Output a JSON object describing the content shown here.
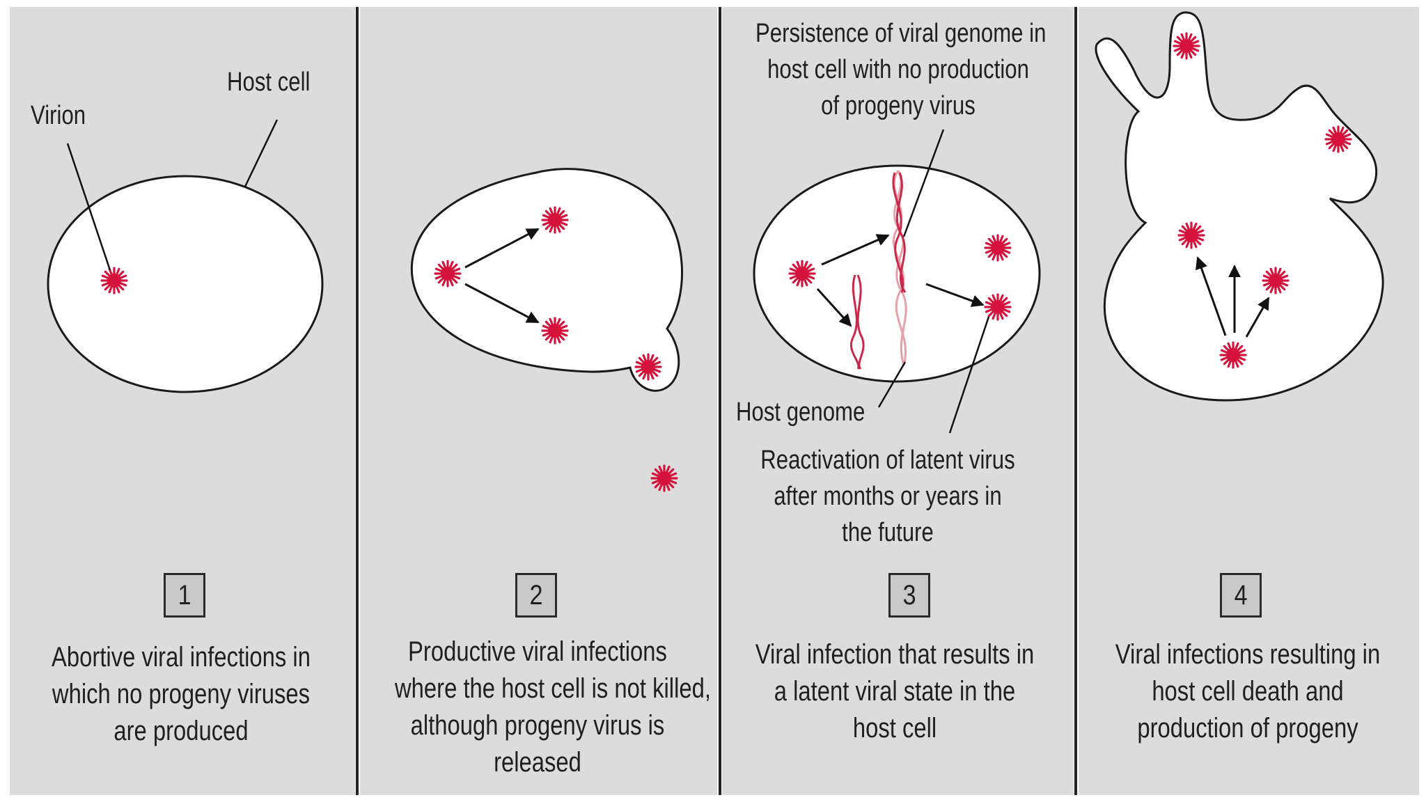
{
  "colors": {
    "panel_bg": "#dcdcdc",
    "cell_fill": "#ffffff",
    "outline": "#1a1a1a",
    "virion": "#d4123c",
    "viral_genome": "#c8284a",
    "host_genome": "#e8a0a8"
  },
  "panels": [
    {
      "number": "1",
      "caption": [
        "Abortive viral infections in",
        "which no progeny viruses",
        "are produced"
      ],
      "labels": {
        "virion": "Virion",
        "host_cell": "Host cell"
      }
    },
    {
      "number": "2",
      "caption": [
        "Productive viral infections",
        "where the host cell is not killed,",
        "although progeny virus is",
        "released"
      ]
    },
    {
      "number": "3",
      "caption": [
        "Viral infection that results in",
        "a latent viral state in the",
        "host cell"
      ],
      "labels": {
        "persistence": [
          "Persistence of viral genome in",
          "host cell with no production",
          "of progeny virus"
        ],
        "host_genome": "Host genome",
        "reactivation": [
          "Reactivation of latent virus",
          "after months or years in",
          "the future"
        ]
      }
    },
    {
      "number": "4",
      "caption": [
        "Viral infections resulting in",
        "host cell death and",
        "production of progeny"
      ]
    }
  ]
}
